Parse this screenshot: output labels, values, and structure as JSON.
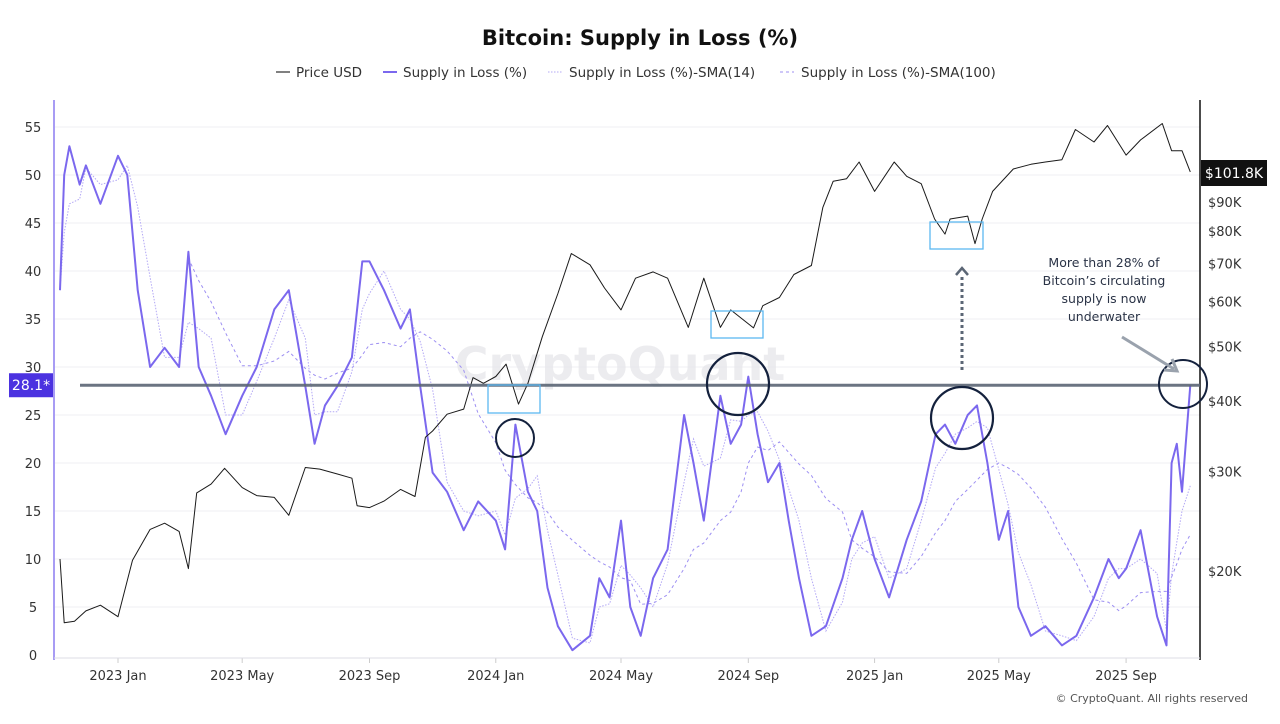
{
  "chart_data": {
    "type": "line",
    "title": "Bitcoin: Supply in Loss (%)",
    "legend": {
      "placement": "top",
      "entries": [
        "Price USD",
        "Supply in Loss (%)",
        "Supply in Loss (%)-SMA(14)",
        "Supply in Loss (%)-SMA(100)"
      ]
    },
    "colors": {
      "price": "#1a1a1a",
      "supply": "#7b68ee",
      "sma14": "#9d8ff2",
      "sma100": "#9d8ff2",
      "threshold": "#5b6675",
      "label_bg": "#4b32e0",
      "highlight_box": "#5cb8f0",
      "circle": "#14213d"
    },
    "left_axis": {
      "ylim": [
        0,
        55
      ],
      "ticks": [
        "0",
        "5",
        "10",
        "15",
        "20",
        "25",
        "30",
        "35",
        "40",
        "45",
        "50",
        "55"
      ],
      "grid": true
    },
    "right_axis": {
      "scale": "log",
      "ticks": [
        "$20K",
        "$30K",
        "$40K",
        "$50K",
        "$60K",
        "$70K",
        "$80K",
        "$90K"
      ],
      "tick_values": [
        20000,
        30000,
        40000,
        50000,
        60000,
        70000,
        80000,
        90000
      ],
      "last_value_label": "$101.8K"
    },
    "x_ticks": [
      {
        "label": "2023 Jan",
        "date": "2023-01-01"
      },
      {
        "label": "2023 May",
        "date": "2023-05-01"
      },
      {
        "label": "2023 Sep",
        "date": "2023-09-01"
      },
      {
        "label": "2024 Jan",
        "date": "2024-01-01"
      },
      {
        "label": "2024 May",
        "date": "2024-05-01"
      },
      {
        "label": "2024 Sep",
        "date": "2024-09-01"
      },
      {
        "label": "2025 Jan",
        "date": "2025-01-01"
      },
      {
        "label": "2025 May",
        "date": "2025-05-01"
      },
      {
        "label": "2025 Sep",
        "date": "2025-09-01"
      }
    ],
    "threshold": {
      "value": 28.1,
      "label": "28.1*"
    },
    "price_series": {
      "name": "Price USD",
      "points": [
        [
          "2022-11-06",
          21000
        ],
        [
          "2022-11-10",
          16200
        ],
        [
          "2022-11-20",
          16300
        ],
        [
          "2022-12-01",
          17000
        ],
        [
          "2022-12-15",
          17400
        ],
        [
          "2023-01-01",
          16600
        ],
        [
          "2023-01-15",
          20900
        ],
        [
          "2023-02-01",
          23700
        ],
        [
          "2023-02-15",
          24300
        ],
        [
          "2023-03-01",
          23500
        ],
        [
          "2023-03-10",
          20200
        ],
        [
          "2023-03-18",
          27500
        ],
        [
          "2023-04-01",
          28500
        ],
        [
          "2023-04-14",
          30400
        ],
        [
          "2023-05-01",
          28100
        ],
        [
          "2023-05-15",
          27200
        ],
        [
          "2023-06-01",
          27000
        ],
        [
          "2023-06-15",
          25100
        ],
        [
          "2023-07-01",
          30500
        ],
        [
          "2023-07-15",
          30300
        ],
        [
          "2023-08-01",
          29700
        ],
        [
          "2023-08-15",
          29200
        ],
        [
          "2023-08-20",
          26100
        ],
        [
          "2023-09-01",
          25900
        ],
        [
          "2023-09-15",
          26600
        ],
        [
          "2023-10-01",
          27900
        ],
        [
          "2023-10-15",
          27100
        ],
        [
          "2023-10-25",
          34500
        ],
        [
          "2023-11-01",
          35400
        ],
        [
          "2023-11-15",
          37900
        ],
        [
          "2023-12-01",
          38700
        ],
        [
          "2023-12-10",
          44000
        ],
        [
          "2023-12-20",
          43000
        ],
        [
          "2024-01-01",
          44200
        ],
        [
          "2024-01-11",
          46500
        ],
        [
          "2024-01-23",
          39500
        ],
        [
          "2024-02-01",
          43000
        ],
        [
          "2024-02-15",
          52000
        ],
        [
          "2024-03-01",
          62000
        ],
        [
          "2024-03-14",
          73000
        ],
        [
          "2024-04-01",
          69700
        ],
        [
          "2024-04-15",
          63400
        ],
        [
          "2024-05-01",
          58000
        ],
        [
          "2024-05-15",
          66000
        ],
        [
          "2024-06-01",
          67700
        ],
        [
          "2024-06-15",
          66000
        ],
        [
          "2024-07-05",
          54000
        ],
        [
          "2024-07-20",
          66000
        ],
        [
          "2024-08-05",
          54000
        ],
        [
          "2024-08-15",
          58000
        ],
        [
          "2024-09-06",
          53900
        ],
        [
          "2024-09-15",
          59000
        ],
        [
          "2024-10-01",
          61000
        ],
        [
          "2024-10-15",
          67000
        ],
        [
          "2024-11-01",
          69500
        ],
        [
          "2024-11-12",
          88000
        ],
        [
          "2024-11-22",
          98000
        ],
        [
          "2024-12-05",
          99000
        ],
        [
          "2024-12-17",
          106000
        ],
        [
          "2025-01-01",
          94000
        ],
        [
          "2025-01-20",
          106000
        ],
        [
          "2025-02-01",
          100000
        ],
        [
          "2025-02-15",
          97000
        ],
        [
          "2025-02-28",
          84000
        ],
        [
          "2025-03-10",
          79000
        ],
        [
          "2025-03-15",
          84000
        ],
        [
          "2025-04-01",
          85000
        ],
        [
          "2025-04-08",
          76000
        ],
        [
          "2025-04-15",
          84000
        ],
        [
          "2025-04-25",
          94000
        ],
        [
          "2025-05-15",
          103000
        ],
        [
          "2025-06-01",
          105000
        ],
        [
          "2025-06-15",
          106000
        ],
        [
          "2025-07-01",
          107000
        ],
        [
          "2025-07-14",
          121000
        ],
        [
          "2025-08-01",
          115000
        ],
        [
          "2025-08-14",
          123000
        ],
        [
          "2025-09-01",
          109000
        ],
        [
          "2025-09-15",
          116000
        ],
        [
          "2025-10-06",
          124000
        ],
        [
          "2025-10-15",
          111000
        ],
        [
          "2025-10-25",
          111000
        ],
        [
          "2025-11-02",
          101800
        ]
      ]
    },
    "supply_series": {
      "name": "Supply in Loss (%)",
      "points": [
        [
          "2022-11-06",
          38
        ],
        [
          "2022-11-10",
          50
        ],
        [
          "2022-11-15",
          53
        ],
        [
          "2022-11-25",
          49
        ],
        [
          "2022-12-01",
          51
        ],
        [
          "2022-12-15",
          47
        ],
        [
          "2023-01-01",
          52
        ],
        [
          "2023-01-10",
          50
        ],
        [
          "2023-01-20",
          38
        ],
        [
          "2023-02-01",
          30
        ],
        [
          "2023-02-15",
          32
        ],
        [
          "2023-03-01",
          30
        ],
        [
          "2023-03-10",
          42
        ],
        [
          "2023-03-20",
          30
        ],
        [
          "2023-04-01",
          27
        ],
        [
          "2023-04-15",
          23
        ],
        [
          "2023-05-01",
          27
        ],
        [
          "2023-05-15",
          30
        ],
        [
          "2023-06-01",
          36
        ],
        [
          "2023-06-15",
          38
        ],
        [
          "2023-07-01",
          28
        ],
        [
          "2023-07-10",
          22
        ],
        [
          "2023-07-20",
          26
        ],
        [
          "2023-08-01",
          28
        ],
        [
          "2023-08-15",
          31
        ],
        [
          "2023-08-25",
          41
        ],
        [
          "2023-09-01",
          41
        ],
        [
          "2023-09-15",
          38
        ],
        [
          "2023-10-01",
          34
        ],
        [
          "2023-10-10",
          36
        ],
        [
          "2023-10-20",
          28
        ],
        [
          "2023-11-01",
          19
        ],
        [
          "2023-11-15",
          17
        ],
        [
          "2023-12-01",
          13
        ],
        [
          "2023-12-15",
          16
        ],
        [
          "2024-01-01",
          14
        ],
        [
          "2024-01-10",
          11
        ],
        [
          "2024-01-20",
          24
        ],
        [
          "2024-02-01",
          17
        ],
        [
          "2024-02-10",
          15
        ],
        [
          "2024-02-20",
          7
        ],
        [
          "2024-03-01",
          3
        ],
        [
          "2024-03-15",
          0.5
        ],
        [
          "2024-04-01",
          2
        ],
        [
          "2024-04-10",
          8
        ],
        [
          "2024-04-20",
          6
        ],
        [
          "2024-05-01",
          14
        ],
        [
          "2024-05-10",
          5
        ],
        [
          "2024-05-20",
          2
        ],
        [
          "2024-06-01",
          8
        ],
        [
          "2024-06-15",
          11
        ],
        [
          "2024-07-01",
          25
        ],
        [
          "2024-07-10",
          20
        ],
        [
          "2024-07-20",
          14
        ],
        [
          "2024-08-05",
          27
        ],
        [
          "2024-08-15",
          22
        ],
        [
          "2024-08-25",
          24
        ],
        [
          "2024-09-01",
          29
        ],
        [
          "2024-09-10",
          23
        ],
        [
          "2024-09-20",
          18
        ],
        [
          "2024-10-01",
          20
        ],
        [
          "2024-10-10",
          14
        ],
        [
          "2024-10-20",
          8
        ],
        [
          "2024-11-01",
          2
        ],
        [
          "2024-11-15",
          3
        ],
        [
          "2024-12-01",
          8
        ],
        [
          "2024-12-10",
          12
        ],
        [
          "2024-12-20",
          15
        ],
        [
          "2025-01-01",
          10
        ],
        [
          "2025-01-15",
          6
        ],
        [
          "2025-02-01",
          12
        ],
        [
          "2025-02-15",
          16
        ],
        [
          "2025-03-01",
          23
        ],
        [
          "2025-03-10",
          24
        ],
        [
          "2025-03-20",
          22
        ],
        [
          "2025-04-01",
          25
        ],
        [
          "2025-04-10",
          26
        ],
        [
          "2025-04-20",
          20
        ],
        [
          "2025-05-01",
          12
        ],
        [
          "2025-05-10",
          15
        ],
        [
          "2025-05-20",
          5
        ],
        [
          "2025-06-01",
          2
        ],
        [
          "2025-06-15",
          3
        ],
        [
          "2025-07-01",
          1
        ],
        [
          "2025-07-15",
          2
        ],
        [
          "2025-08-01",
          6
        ],
        [
          "2025-08-15",
          10
        ],
        [
          "2025-08-25",
          8
        ],
        [
          "2025-09-01",
          9
        ],
        [
          "2025-09-15",
          13
        ],
        [
          "2025-10-01",
          4
        ],
        [
          "2025-10-10",
          1
        ],
        [
          "2025-10-15",
          20
        ],
        [
          "2025-10-20",
          22
        ],
        [
          "2025-10-25",
          17
        ],
        [
          "2025-11-02",
          28.1
        ]
      ]
    },
    "sma_windows_days": [
      14,
      100
    ],
    "annotation": "More than 28% of Bitcoin’s circulating supply is now underwater",
    "annotation_lines": [
      "More than 28% of",
      "Bitcoin’s circulating",
      "supply is now",
      "underwater"
    ],
    "watermark": "CryptoQuant",
    "copyright": "© CryptoQuant. All rights reserved"
  }
}
